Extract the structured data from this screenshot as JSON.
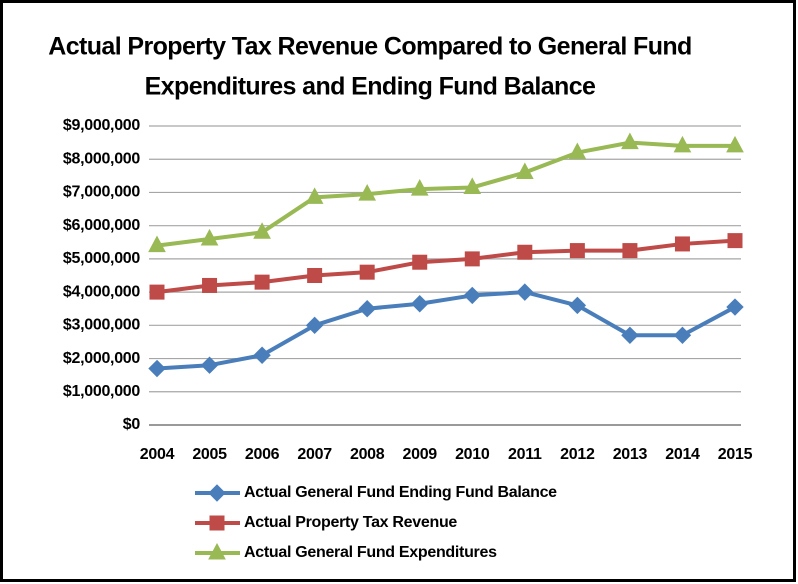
{
  "chart_data": {
    "type": "line",
    "title": [
      "Actual Property Tax Revenue Compared to General Fund",
      "Expenditures and Ending Fund Balance"
    ],
    "categories": [
      "2004",
      "2005",
      "2006",
      "2007",
      "2008",
      "2009",
      "2010",
      "2011",
      "2012",
      "2013",
      "2014",
      "2015"
    ],
    "series": [
      {
        "name": "Actual General Fund Ending Fund Balance",
        "color": "#4a7ebb",
        "marker": "diamond",
        "values": [
          1700000,
          1800000,
          2100000,
          3000000,
          3500000,
          3650000,
          3900000,
          4000000,
          3600000,
          2700000,
          2700000,
          3550000
        ]
      },
      {
        "name": "Actual Property Tax Revenue",
        "color": "#be4b48",
        "marker": "square",
        "values": [
          4000000,
          4200000,
          4300000,
          4500000,
          4600000,
          4900000,
          5000000,
          5200000,
          5250000,
          5250000,
          5450000,
          5550000
        ]
      },
      {
        "name": "Actual General Fund Expenditures",
        "color": "#98b954",
        "marker": "triangle",
        "values": [
          5400000,
          5600000,
          5800000,
          6850000,
          6950000,
          7100000,
          7150000,
          7600000,
          8200000,
          8500000,
          8400000,
          8400000
        ]
      }
    ],
    "ylim": [
      0,
      9000000
    ],
    "yticks": [
      {
        "value": 0,
        "label": "$0"
      },
      {
        "value": 1000000,
        "label": "$1,000,000"
      },
      {
        "value": 2000000,
        "label": "$2,000,000"
      },
      {
        "value": 3000000,
        "label": "$3,000,000"
      },
      {
        "value": 4000000,
        "label": "$4,000,000"
      },
      {
        "value": 5000000,
        "label": "$5,000,000"
      },
      {
        "value": 6000000,
        "label": "$6,000,000"
      },
      {
        "value": 7000000,
        "label": "$7,000,000"
      },
      {
        "value": 8000000,
        "label": "$8,000,000"
      },
      {
        "value": 9000000,
        "label": "$9,000,000"
      }
    ],
    "grid": true,
    "legend": "bottom"
  }
}
